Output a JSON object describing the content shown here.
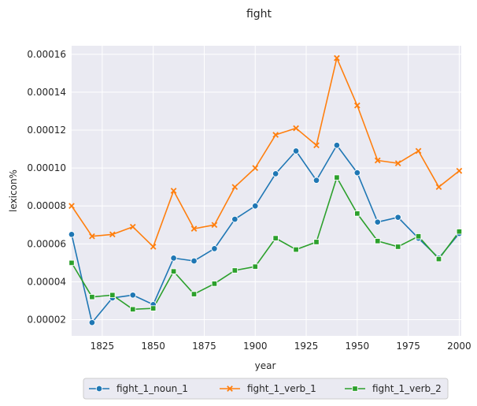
{
  "chart_data": {
    "type": "line",
    "title": "fight",
    "xlabel": "year",
    "ylabel": "lexicon%",
    "xlim": [
      1810,
      2001
    ],
    "ylim": [
      1.15e-05,
      0.0001645
    ],
    "xticks": [
      1825,
      1850,
      1875,
      1900,
      1925,
      1950,
      1975,
      2000
    ],
    "xtick_labels": [
      "1825",
      "1850",
      "1875",
      "1900",
      "1925",
      "1950",
      "1975",
      "2000"
    ],
    "yticks": [
      2e-05,
      4e-05,
      6e-05,
      8e-05,
      0.0001,
      0.00012,
      0.00014,
      0.00016
    ],
    "ytick_labels": [
      "0.00002",
      "0.00004",
      "0.00006",
      "0.00008",
      "0.00010",
      "0.00012",
      "0.00014",
      "0.00016"
    ],
    "grid": true,
    "legend_position": "bottom-center",
    "x": [
      1810,
      1820,
      1830,
      1840,
      1850,
      1860,
      1870,
      1880,
      1890,
      1900,
      1910,
      1920,
      1930,
      1940,
      1950,
      1960,
      1970,
      1980,
      1990,
      2000
    ],
    "series": [
      {
        "name": "fight_1_noun_1",
        "color": "#1f77b4",
        "marker": "circle",
        "values": [
          6.5e-05,
          1.85e-05,
          3.15e-05,
          3.3e-05,
          2.8e-05,
          5.25e-05,
          5.1e-05,
          5.75e-05,
          7.3e-05,
          8e-05,
          9.7e-05,
          0.000109,
          9.35e-05,
          0.000112,
          9.75e-05,
          7.15e-05,
          7.4e-05,
          6.3e-05,
          5.25e-05,
          6.55e-05
        ]
      },
      {
        "name": "fight_1_verb_1",
        "color": "#ff7f0e",
        "marker": "x",
        "values": [
          8e-05,
          6.4e-05,
          6.5e-05,
          6.9e-05,
          5.85e-05,
          8.8e-05,
          6.8e-05,
          7e-05,
          9e-05,
          0.0001,
          0.0001175,
          0.000121,
          0.000112,
          0.000158,
          0.000133,
          0.000104,
          0.0001025,
          0.000109,
          9e-05,
          9.85e-05
        ]
      },
      {
        "name": "fight_1_verb_2",
        "color": "#2ca02c",
        "marker": "square",
        "values": [
          5e-05,
          3.2e-05,
          3.3e-05,
          2.55e-05,
          2.6e-05,
          4.55e-05,
          3.35e-05,
          3.9e-05,
          4.6e-05,
          4.8e-05,
          6.3e-05,
          5.7e-05,
          6.1e-05,
          9.5e-05,
          7.6e-05,
          6.15e-05,
          5.85e-05,
          6.4e-05,
          5.2e-05,
          6.65e-05
        ]
      }
    ]
  }
}
